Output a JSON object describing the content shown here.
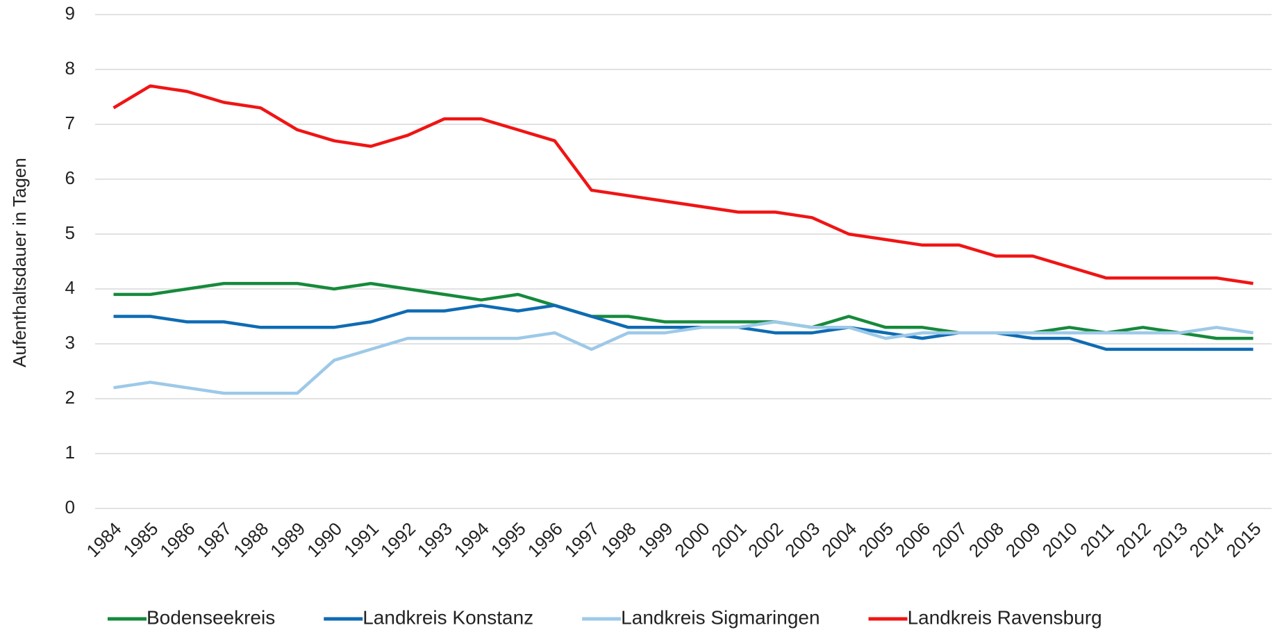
{
  "chart_data": {
    "type": "line",
    "y_label": "Aufenthaltsdauer in Tagen",
    "categories": [
      "1984",
      "1985",
      "1986",
      "1987",
      "1988",
      "1989",
      "1990",
      "1991",
      "1992",
      "1993",
      "1994",
      "1995",
      "1996",
      "1997",
      "1998",
      "1999",
      "2000",
      "2001",
      "2002",
      "2003",
      "2004",
      "2005",
      "2006",
      "2007",
      "2008",
      "2009",
      "2010",
      "2011",
      "2012",
      "2013",
      "2014",
      "2015"
    ],
    "series": [
      {
        "name": "Bodenseekreis",
        "color": "#168a3c",
        "values": [
          3.9,
          3.9,
          4.0,
          4.1,
          4.1,
          4.1,
          4.0,
          4.1,
          4.0,
          3.9,
          3.8,
          3.9,
          3.7,
          3.5,
          3.5,
          3.4,
          3.4,
          3.4,
          3.4,
          3.3,
          3.5,
          3.3,
          3.3,
          3.2,
          3.2,
          3.2,
          3.3,
          3.2,
          3.3,
          3.2,
          3.1,
          3.1
        ]
      },
      {
        "name": "Landkreis Konstanz",
        "color": "#0e6bb3",
        "values": [
          3.5,
          3.5,
          3.4,
          3.4,
          3.3,
          3.3,
          3.3,
          3.4,
          3.6,
          3.6,
          3.7,
          3.6,
          3.7,
          3.5,
          3.3,
          3.3,
          3.3,
          3.3,
          3.2,
          3.2,
          3.3,
          3.2,
          3.1,
          3.2,
          3.2,
          3.1,
          3.1,
          2.9,
          2.9,
          2.9,
          2.9,
          2.9
        ]
      },
      {
        "name": "Landkreis Sigmaringen",
        "color": "#9dc9e8",
        "values": [
          2.2,
          2.3,
          2.2,
          2.1,
          2.1,
          2.1,
          2.7,
          2.9,
          3.1,
          3.1,
          3.1,
          3.1,
          3.2,
          2.9,
          3.2,
          3.2,
          3.3,
          3.3,
          3.4,
          3.3,
          3.3,
          3.1,
          3.2,
          3.2,
          3.2,
          3.2,
          3.2,
          3.2,
          3.2,
          3.2,
          3.3,
          3.2
        ]
      },
      {
        "name": "Landkreis Ravensburg",
        "color": "#f01414",
        "values": [
          7.3,
          7.7,
          7.6,
          7.4,
          7.3,
          6.9,
          6.7,
          6.6,
          6.8,
          7.1,
          7.1,
          6.9,
          6.7,
          5.8,
          5.7,
          5.6,
          5.5,
          5.4,
          5.4,
          5.3,
          5.0,
          4.9,
          4.8,
          4.8,
          4.6,
          4.6,
          4.4,
          4.2,
          4.2,
          4.2,
          4.2,
          4.1
        ]
      }
    ],
    "ylim": [
      0,
      9
    ],
    "yticks": [
      0,
      1,
      2,
      3,
      4,
      5,
      6,
      7,
      8,
      9
    ],
    "grid": true,
    "legend": "bottom"
  }
}
